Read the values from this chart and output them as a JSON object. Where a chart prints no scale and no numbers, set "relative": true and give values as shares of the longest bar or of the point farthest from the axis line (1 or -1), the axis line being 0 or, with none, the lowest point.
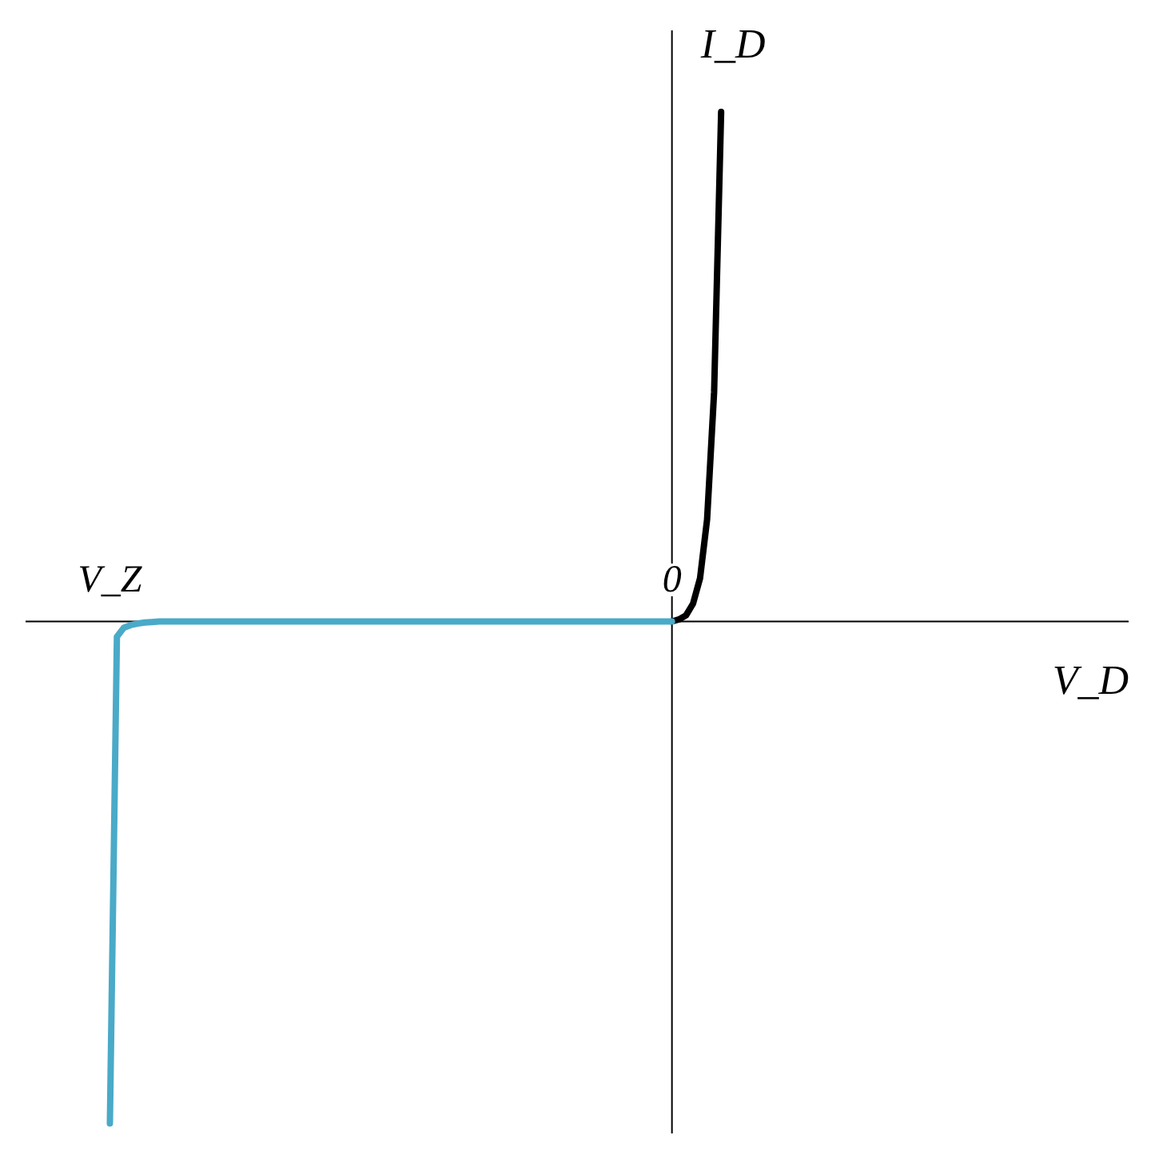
{
  "chart_data": {
    "type": "line",
    "relative": true,
    "xlabel": "V_D",
    "ylabel": "I_D",
    "categories": [
      null,
      null,
      null,
      null,
      null,
      null,
      null,
      null,
      null,
      null,
      null,
      null,
      "V_Z",
      null,
      null,
      null,
      null,
      null,
      null,
      null,
      null,
      null,
      null,
      null,
      null,
      null,
      null,
      null,
      null,
      null,
      null,
      null,
      null,
      null,
      null,
      null,
      null,
      null,
      null,
      null,
      null,
      null,
      null,
      null,
      null,
      null,
      null,
      null,
      null,
      null,
      null,
      null,
      null,
      null,
      null,
      null,
      null,
      null,
      null,
      null,
      null,
      null,
      null,
      null,
      null,
      null,
      null,
      null,
      null,
      null,
      null,
      null,
      null,
      null,
      null,
      null,
      null,
      null,
      null,
      null,
      null,
      null,
      null,
      null,
      null,
      null,
      null,
      null,
      null,
      null,
      null,
      null,
      "0",
      null,
      null,
      null,
      null,
      null,
      null,
      null,
      null,
      null,
      null,
      null,
      null,
      null,
      null,
      null,
      null,
      null,
      null,
      null,
      null,
      null,
      null,
      null,
      null,
      null,
      null,
      null,
      null,
      null,
      null,
      null,
      null,
      null,
      null,
      null,
      null,
      null,
      null,
      null,
      null,
      null,
      null,
      null,
      null,
      null,
      null,
      null,
      null,
      null,
      null,
      null,
      null,
      null,
      null,
      null,
      null,
      null,
      null,
      null,
      null,
      null,
      null,
      null,
      null,
      null
    ],
    "line_style": "solid",
    "series": [
      {
        "color": "#000000",
        "values": [
          null,
          null,
          null,
          null,
          null,
          null,
          null,
          null,
          null,
          null,
          null,
          null,
          null,
          null,
          null,
          null,
          null,
          null,
          null,
          null,
          null,
          null,
          null,
          null,
          null,
          null,
          null,
          null,
          null,
          null,
          null,
          null,
          null,
          null,
          null,
          null,
          null,
          null,
          null,
          null,
          null,
          null,
          null,
          null,
          null,
          null,
          null,
          null,
          null,
          null,
          null,
          null,
          null,
          null,
          null,
          null,
          null,
          null,
          null,
          null,
          null,
          null,
          null,
          null,
          null,
          null,
          null,
          null,
          null,
          null,
          null,
          null,
          null,
          null,
          null,
          null,
          null,
          null,
          null,
          null,
          null,
          null,
          null,
          null,
          null,
          null,
          null,
          null,
          null,
          null,
          null,
          null,
          0,
          0.004,
          0.012,
          0.035,
          0.085,
          0.2,
          0.45,
          1,
          null,
          null,
          null,
          null,
          null,
          null,
          null,
          null,
          null,
          null,
          null,
          null,
          null,
          null,
          null,
          null,
          null,
          null,
          null,
          null,
          null,
          null,
          null,
          null,
          null,
          null,
          null,
          null,
          null,
          null,
          null,
          null,
          null,
          null,
          null,
          null,
          null,
          null,
          null,
          null,
          null,
          null,
          null,
          null,
          null,
          null,
          null,
          null,
          null,
          null,
          null,
          null,
          null,
          null,
          null,
          null,
          null,
          null
        ]
      },
      {
        "color": "#4aaac8",
        "values": [
          null,
          null,
          null,
          null,
          null,
          null,
          null,
          null,
          null,
          null,
          null,
          null,
          -0.985,
          -0.03,
          -0.012,
          -0.007,
          -0.004,
          -0.002,
          -0.001,
          0,
          0,
          0,
          0,
          0,
          0,
          0,
          0,
          0,
          0,
          0,
          0,
          0,
          0,
          0,
          0,
          0,
          0,
          0,
          0,
          0,
          0,
          0,
          0,
          0,
          0,
          0,
          0,
          0,
          0,
          0,
          0,
          0,
          0,
          0,
          0,
          0,
          0,
          0,
          0,
          0,
          0,
          0,
          0,
          0,
          0,
          0,
          0,
          0,
          0,
          0,
          0,
          0,
          0,
          0,
          0,
          0,
          0,
          0,
          0,
          0,
          0,
          0,
          0,
          0,
          0,
          0,
          0,
          0,
          0,
          0,
          0,
          0,
          0,
          null,
          null,
          null,
          null,
          null,
          null,
          null,
          null,
          null,
          null,
          null,
          null,
          null,
          null,
          null,
          null,
          null,
          null,
          null,
          null,
          null,
          null,
          null,
          null,
          null,
          null,
          null,
          null,
          null,
          null,
          null,
          null,
          null,
          null,
          null,
          null,
          null,
          null,
          null,
          null,
          null,
          null,
          null,
          null,
          null,
          null,
          null,
          null,
          null,
          null,
          null,
          null,
          null,
          null,
          null,
          null,
          null,
          null,
          null,
          null,
          null,
          null,
          null,
          null,
          null
        ]
      }
    ]
  }
}
